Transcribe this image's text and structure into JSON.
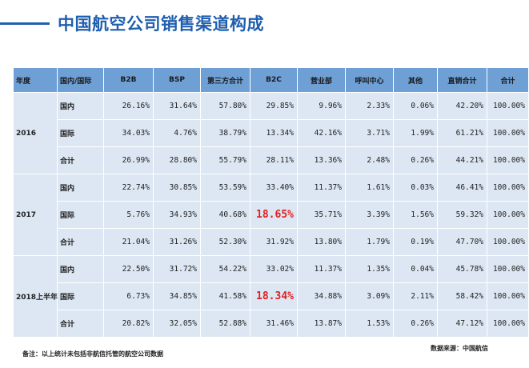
{
  "title": "中国航空公司销售渠道构成",
  "table": {
    "headers": [
      "年度",
      "国内/国际",
      "B2B",
      "BSP",
      "第三方合计",
      "B2C",
      "营业部",
      "呼叫中心",
      "其他",
      "直销合计",
      "合计"
    ],
    "groups": [
      {
        "year": "2016",
        "rows": [
          {
            "scope": "国内",
            "cells": [
              "26.16%",
              "31.64%",
              "57.80%",
              "29.85%",
              "9.96%",
              "2.33%",
              "0.06%",
              "42.20%",
              "100.00%"
            ]
          },
          {
            "scope": "国际",
            "cells": [
              "34.03%",
              "4.76%",
              "38.79%",
              "13.34%",
              "42.16%",
              "3.71%",
              "1.99%",
              "61.21%",
              "100.00%"
            ]
          },
          {
            "scope": "合计",
            "cells": [
              "26.99%",
              "28.80%",
              "55.79%",
              "28.11%",
              "13.36%",
              "2.48%",
              "0.26%",
              "44.21%",
              "100.00%"
            ]
          }
        ]
      },
      {
        "year": "2017",
        "rows": [
          {
            "scope": "国内",
            "cells": [
              "22.74%",
              "30.85%",
              "53.59%",
              "33.40%",
              "11.37%",
              "1.61%",
              "0.03%",
              "46.41%",
              "100.00%"
            ]
          },
          {
            "scope": "国际",
            "cells": [
              "5.76%",
              "34.93%",
              "40.68%",
              "18.65%",
              "35.71%",
              "3.39%",
              "1.56%",
              "59.32%",
              "100.00%"
            ]
          },
          {
            "scope": "合计",
            "cells": [
              "21.04%",
              "31.26%",
              "52.30%",
              "31.92%",
              "13.80%",
              "1.79%",
              "0.19%",
              "47.70%",
              "100.00%"
            ]
          }
        ]
      },
      {
        "year": "2018上半年",
        "rows": [
          {
            "scope": "国内",
            "cells": [
              "22.50%",
              "31.72%",
              "54.22%",
              "33.02%",
              "11.37%",
              "1.35%",
              "0.04%",
              "45.78%",
              "100.00%"
            ]
          },
          {
            "scope": "国际",
            "cells": [
              "6.73%",
              "34.85%",
              "41.58%",
              "18.34%",
              "34.88%",
              "3.09%",
              "2.11%",
              "58.42%",
              "100.00%"
            ]
          },
          {
            "scope": "合计",
            "cells": [
              "20.82%",
              "32.05%",
              "52.88%",
              "31.46%",
              "13.87%",
              "1.53%",
              "0.26%",
              "47.12%",
              "100.00%"
            ]
          }
        ]
      }
    ],
    "highlight_color": "#e02020",
    "header_color": "#6e9fd5",
    "row_color": "#dde7f3"
  },
  "footer": {
    "note": "备注：以上统计未包括非航信托管的航空公司数据",
    "source": "数据来源：中国航信"
  }
}
